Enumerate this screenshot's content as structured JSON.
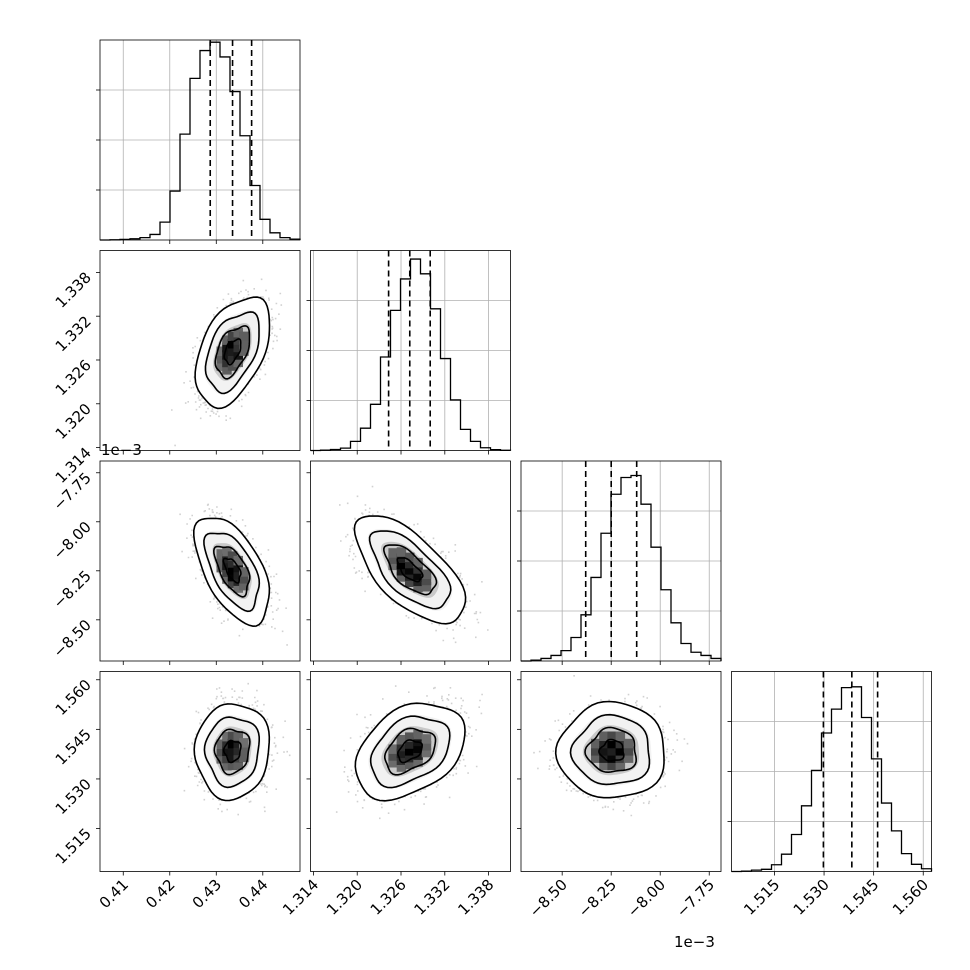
{
  "chart_data": {
    "type": "corner",
    "grid": true,
    "parameters": [
      {
        "range": [
          0.405,
          0.448
        ],
        "ticks": [
          "0.41",
          "0.42",
          "0.43",
          "0.44"
        ],
        "tick_values": [
          0.41,
          0.42,
          0.43,
          0.44
        ],
        "mean": 0.4335,
        "sd": 0.0032,
        "quantiles": [
          0.4287,
          0.4335,
          0.4376
        ],
        "offset": ""
      },
      {
        "range": [
          1.3136,
          1.341
        ],
        "ticks": [
          "1.314",
          "1.320",
          "1.326",
          "1.332",
          "1.338"
        ],
        "tick_values": [
          1.314,
          1.32,
          1.326,
          1.332,
          1.338
        ],
        "mean": 1.3272,
        "sd": 0.003,
        "quantiles": [
          1.3243,
          1.3272,
          1.33
        ],
        "offset": ""
      },
      {
        "range": [
          -8.71,
          -7.69
        ],
        "ticks": [
          "−8.50",
          "−8.25",
          "−8.00",
          "−7.75"
        ],
        "tick_values": [
          -8.5,
          -8.25,
          -8.0,
          -7.75
        ],
        "mean": -8.245,
        "sd": 0.11,
        "quantiles": [
          -8.38,
          -8.25,
          -8.12
        ],
        "offset": "1e−3"
      },
      {
        "range": [
          1.502,
          1.5625
        ],
        "ticks": [
          "1.515",
          "1.530",
          "1.545",
          "1.560"
        ],
        "tick_values": [
          1.515,
          1.53,
          1.545,
          1.56
        ],
        "mean": 1.5385,
        "sd": 0.0058,
        "quantiles": [
          1.5298,
          1.5384,
          1.5462
        ],
        "offset": ""
      }
    ],
    "histograms": [
      [
        0.0,
        0.001,
        0.003,
        0.006,
        0.012,
        0.028,
        0.09,
        0.246,
        0.532,
        0.812,
        0.952,
        0.994,
        0.92,
        0.746,
        0.524,
        0.274,
        0.104,
        0.036,
        0.012,
        0.004
      ],
      [
        0.0,
        0.002,
        0.005,
        0.012,
        0.046,
        0.112,
        0.232,
        0.47,
        0.704,
        0.862,
        0.962,
        0.888,
        0.712,
        0.462,
        0.254,
        0.106,
        0.046,
        0.014,
        0.004,
        0.001
      ],
      [
        0.0,
        0.004,
        0.013,
        0.028,
        0.052,
        0.118,
        0.232,
        0.42,
        0.642,
        0.838,
        0.922,
        0.932,
        0.788,
        0.572,
        0.358,
        0.192,
        0.088,
        0.044,
        0.028,
        0.013
      ],
      [
        0.0,
        0.002,
        0.007,
        0.011,
        0.034,
        0.087,
        0.186,
        0.33,
        0.508,
        0.696,
        0.816,
        0.924,
        0.928,
        0.774,
        0.566,
        0.344,
        0.204,
        0.09,
        0.036,
        0.014
      ]
    ],
    "correlations": [
      [
        1,
        0.45,
        -0.55,
        0.05
      ],
      [
        0.45,
        1,
        -0.65,
        0.35
      ],
      [
        -0.55,
        -0.65,
        1,
        0.0
      ],
      [
        0.05,
        0.35,
        0.0,
        1
      ]
    ]
  }
}
